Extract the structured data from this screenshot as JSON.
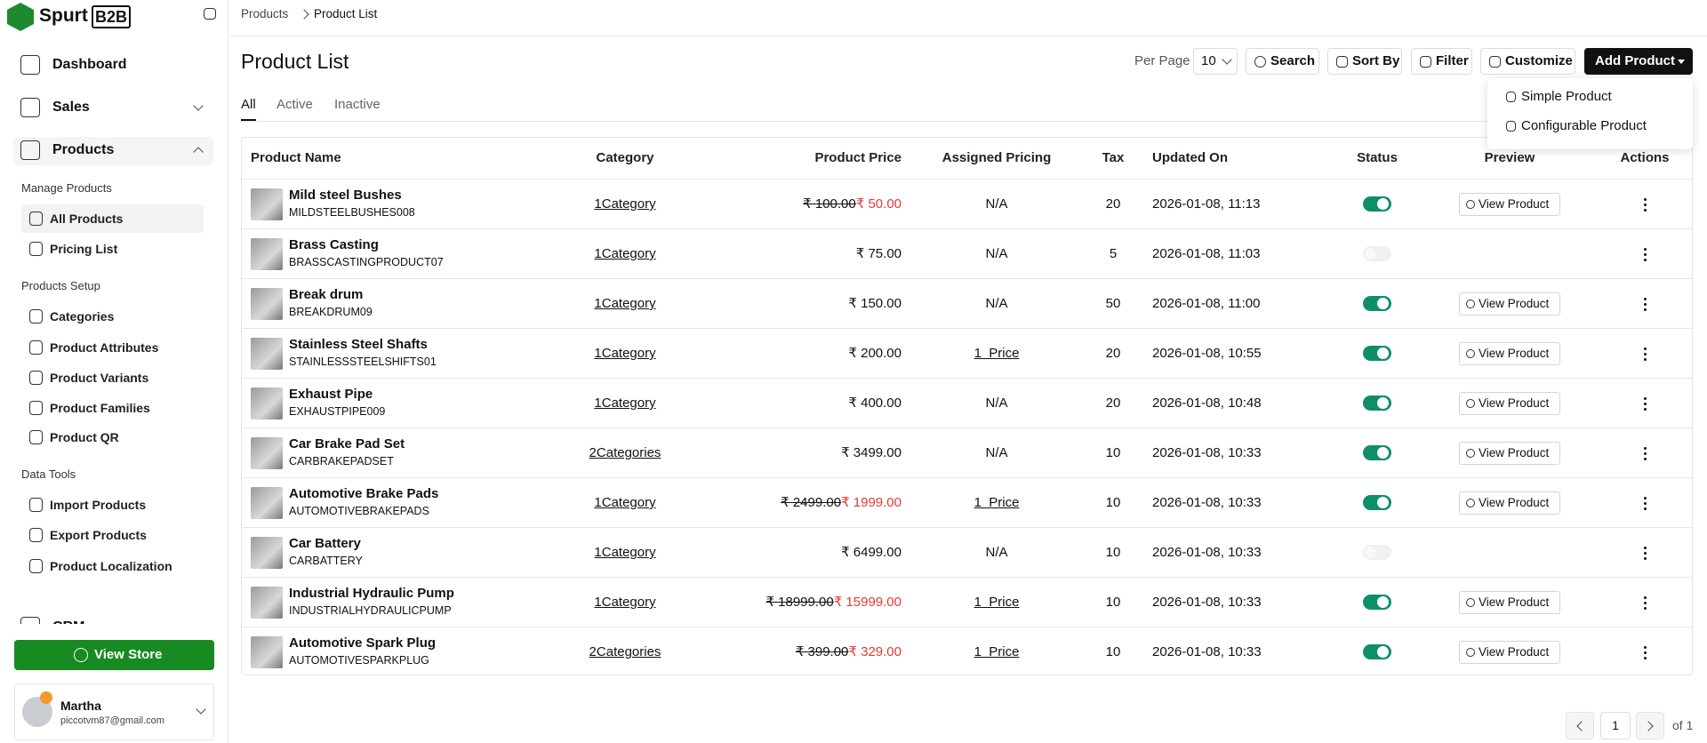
{
  "sidebar": {
    "brand": "Spurt",
    "brand_badge": "B2B",
    "main_items": [
      "Dashboard",
      "Sales",
      "Products"
    ],
    "groups": [
      {
        "title": "Manage Products",
        "items": [
          "All Products",
          "Pricing List"
        ]
      },
      {
        "title": "Products Setup",
        "items": [
          "Categories",
          "Product Attributes",
          "Product Variants",
          "Product Families",
          "Product QR"
        ]
      },
      {
        "title": "Data Tools",
        "items": [
          "Import Products",
          "Export Products",
          "Product Localization"
        ]
      }
    ],
    "clipped_item": "CRM",
    "view_store": "View Store",
    "user": {
      "name": "Martha",
      "email": "piccotvm87@gmail.com"
    }
  },
  "breadcrumb": [
    "Products",
    "Product List"
  ],
  "header": {
    "title": "Product List",
    "per_page_label": "Per Page",
    "per_page": 10,
    "buttons": [
      "Search",
      "Sort By",
      "Filter",
      "Customize"
    ],
    "primary_button": "Add Product",
    "dropdown": [
      "Simple Product",
      "Configurable Product"
    ]
  },
  "tabs": [
    "All",
    "Active",
    "Inactive"
  ],
  "table": {
    "columns": [
      "Product Name",
      "Category",
      "Product Price",
      "Assigned Pricing",
      "Tax",
      "Updated On",
      "Status",
      "Preview",
      "Actions"
    ],
    "rows": [
      {
        "name": "Mild steel Bushes",
        "sku": "MILDSTEELBUSHES008",
        "category": "1Category",
        "price": "₹ 100.00",
        "sale_price": "₹ 50.00",
        "assigned_pricing": "N/A",
        "tax": 20,
        "updated_on": "2026-01-08, 11:13",
        "status": true,
        "preview": "View Product"
      },
      {
        "name": "Brass Casting",
        "sku": "BRASSCASTINGPRODUCT07",
        "category": "1Category",
        "price": "₹ 75.00",
        "assigned_pricing": "N/A",
        "tax": 5,
        "updated_on": "2026-01-08, 11:03",
        "status": false
      },
      {
        "name": "Break drum",
        "sku": "BREAKDRUM09",
        "category": "1Category",
        "price": "₹ 150.00",
        "assigned_pricing": "N/A",
        "tax": 50,
        "updated_on": "2026-01-08, 11:00",
        "status": true,
        "preview": "View Product"
      },
      {
        "name": "Stainless Steel Shafts",
        "sku": "STAINLESSSTEELSHIFTS01",
        "category": "1Category",
        "price": "₹ 200.00",
        "assigned_pricing": "1  Price",
        "tax": 20,
        "updated_on": "2026-01-08, 10:55",
        "status": true,
        "preview": "View Product"
      },
      {
        "name": "Exhaust Pipe",
        "sku": "EXHAUSTPIPE009",
        "category": "1Category",
        "price": "₹ 400.00",
        "assigned_pricing": "N/A",
        "tax": 20,
        "updated_on": "2026-01-08, 10:48",
        "status": true,
        "preview": "View Product"
      },
      {
        "name": "Car Brake Pad Set",
        "sku": "CARBRAKEPADSET",
        "category": "2Categories",
        "price": "₹ 3499.00",
        "assigned_pricing": "N/A",
        "tax": 10,
        "updated_on": "2026-01-08, 10:33",
        "status": true,
        "preview": "View Product"
      },
      {
        "name": "Automotive Brake Pads",
        "sku": "AUTOMOTIVEBRAKEPADS",
        "category": "1Category",
        "price": "₹ 2499.00",
        "sale_price": "₹ 1999.00",
        "assigned_pricing": "1  Price",
        "tax": 10,
        "updated_on": "2026-01-08, 10:33",
        "status": true,
        "preview": "View Product"
      },
      {
        "name": "Car Battery",
        "sku": "CARBATTERY",
        "category": "1Category",
        "price": "₹ 6499.00",
        "assigned_pricing": "N/A",
        "tax": 10,
        "updated_on": "2026-01-08, 10:33",
        "status": false
      },
      {
        "name": "Industrial Hydraulic Pump",
        "sku": "INDUSTRIALHYDRAULICPUMP",
        "category": "1Category",
        "price": "₹ 18999.00",
        "sale_price": "₹ 15999.00",
        "assigned_pricing": "1  Price",
        "tax": 10,
        "updated_on": "2026-01-08, 10:33",
        "status": true,
        "preview": "View Product"
      },
      {
        "name": "Automotive Spark Plug",
        "sku": "AUTOMOTIVESPARKPLUG",
        "category": "2Categories",
        "price": "₹ 399.00",
        "sale_price": "₹ 329.00",
        "assigned_pricing": "1  Price",
        "tax": 10,
        "updated_on": "2026-01-08, 10:33",
        "status": true,
        "preview": "View Product"
      }
    ]
  },
  "pagination": {
    "page": 1,
    "of": "of 1"
  }
}
